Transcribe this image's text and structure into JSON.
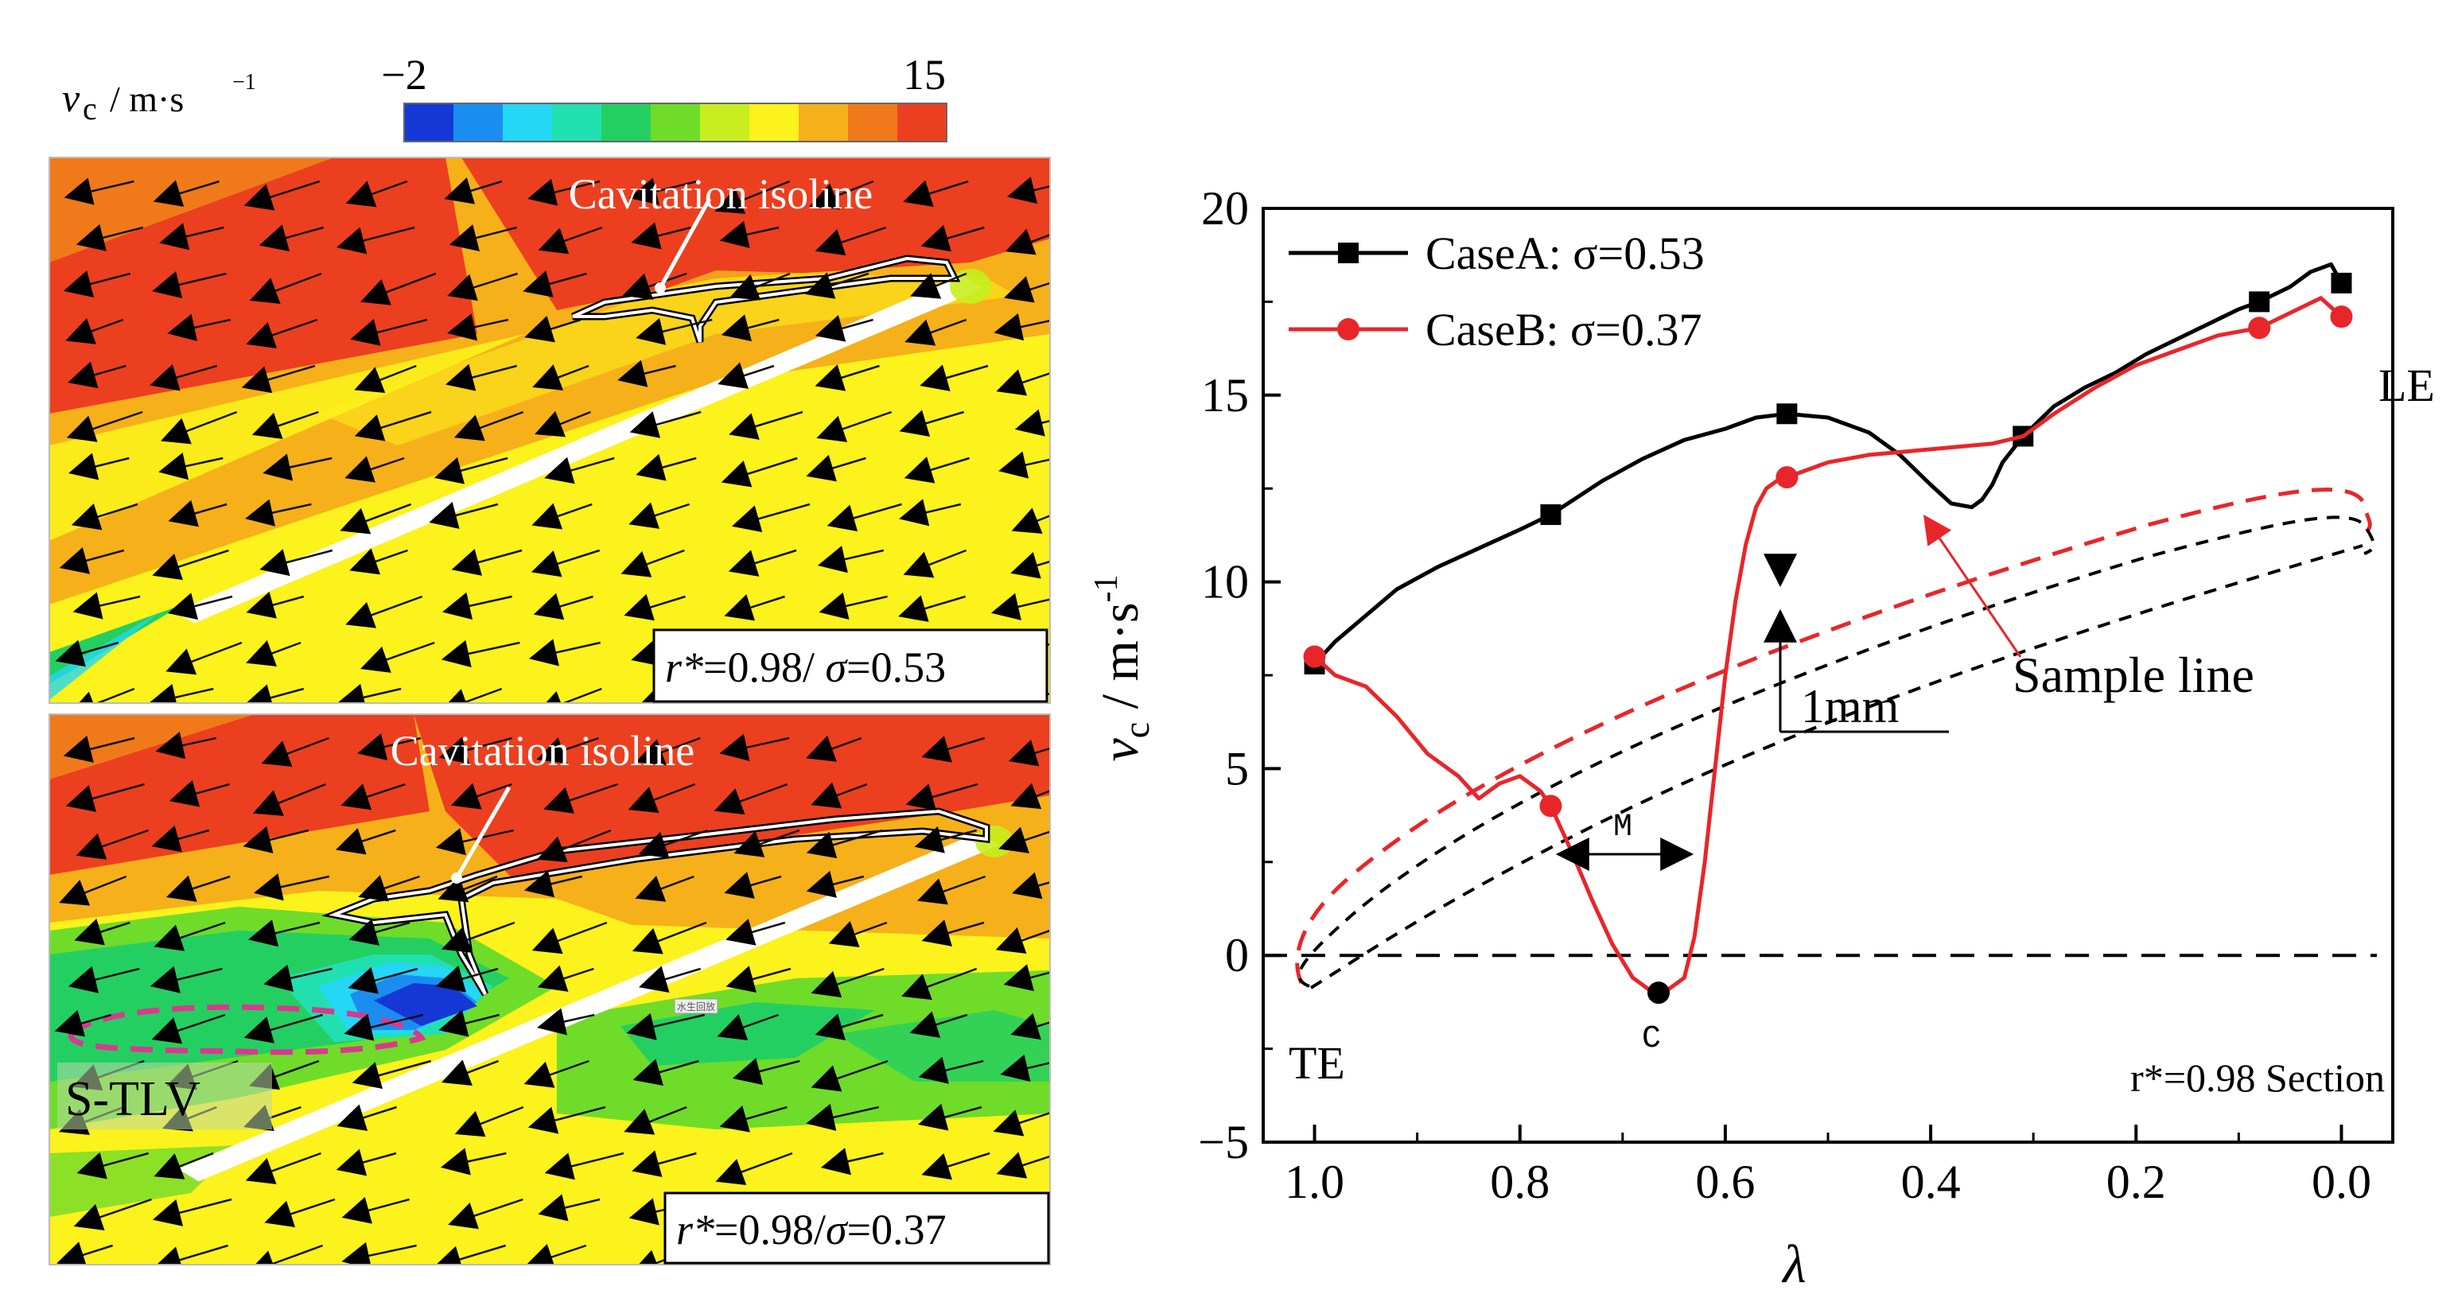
{
  "colorbar": {
    "symbol": "v",
    "subscript": "c",
    "unit": "/ m·s",
    "unit_exp": "−1",
    "min_label": "−2",
    "max_label": "15",
    "colors": [
      "#1538d6",
      "#1a8ef0",
      "#23d7f5",
      "#21e0b0",
      "#24cf62",
      "#6fdc2a",
      "#c8ee1e",
      "#fcf21c",
      "#f6b01a",
      "#f07a1a",
      "#ec3f1f"
    ]
  },
  "panels": [
    {
      "label": "r*=0.98/ σ=0.53",
      "label_r": "r*",
      "label_val": "=0.98/ ",
      "label_sigma": "σ",
      "label_sval": "=0.53",
      "annotation": "Cavitation isoline"
    },
    {
      "label": "r*=0.98/σ=0.37",
      "label_r": "r*",
      "label_val": "=0.98/",
      "label_sigma": "σ",
      "label_sval": "=0.37",
      "annotation": "Cavitation isoline",
      "vortex_label": "S-TLV",
      "stamp": "水生回放"
    }
  ],
  "chart_data": {
    "type": "line",
    "xlabel": "λ",
    "ylabel": "v",
    "ylabel_sub": "c",
    "ylabel_unit": " / m·s",
    "ylabel_exp": "-1",
    "xlim": [
      1.05,
      -0.05
    ],
    "ylim": [
      -5,
      20
    ],
    "xticks": [
      1.0,
      0.8,
      0.6,
      0.4,
      0.2,
      0.0
    ],
    "xtick_labels": [
      "1.0",
      "0.8",
      "0.6",
      "0.4",
      "0.2",
      "0.0"
    ],
    "yticks": [
      -5,
      0,
      5,
      10,
      15,
      20
    ],
    "ytick_labels": [
      "−5",
      "0",
      "5",
      "10",
      "15",
      "20"
    ],
    "legend_position": "top-left",
    "series": [
      {
        "name": "CaseA: σ=0.53",
        "color": "#000000",
        "marker": "square",
        "x": [
          1.0,
          0.98,
          0.95,
          0.92,
          0.88,
          0.84,
          0.8,
          0.77,
          0.72,
          0.68,
          0.64,
          0.6,
          0.57,
          0.54,
          0.5,
          0.46,
          0.43,
          0.4,
          0.38,
          0.36,
          0.35,
          0.34,
          0.33,
          0.31,
          0.28,
          0.25,
          0.22,
          0.19,
          0.16,
          0.13,
          0.1,
          0.08,
          0.05,
          0.03,
          0.01,
          0.0
        ],
        "y": [
          7.8,
          8.4,
          9.1,
          9.8,
          10.4,
          10.9,
          11.4,
          11.8,
          12.7,
          13.3,
          13.8,
          14.1,
          14.4,
          14.5,
          14.4,
          14.0,
          13.4,
          12.6,
          12.1,
          12.0,
          12.2,
          12.6,
          13.2,
          13.9,
          14.7,
          15.2,
          15.6,
          16.1,
          16.5,
          16.9,
          17.3,
          17.5,
          17.9,
          18.3,
          18.5,
          18.0
        ],
        "marker_x": [
          1.0,
          0.77,
          0.54,
          0.31,
          0.08,
          0.0
        ],
        "marker_y": [
          7.8,
          11.8,
          14.5,
          13.9,
          17.5,
          18.0
        ]
      },
      {
        "name": "CaseB: σ=0.37",
        "color": "#e8262a",
        "marker": "circle",
        "x": [
          1.0,
          0.98,
          0.95,
          0.92,
          0.89,
          0.86,
          0.84,
          0.82,
          0.8,
          0.78,
          0.77,
          0.75,
          0.73,
          0.71,
          0.69,
          0.67,
          0.66,
          0.64,
          0.63,
          0.62,
          0.61,
          0.6,
          0.59,
          0.58,
          0.57,
          0.56,
          0.55,
          0.54,
          0.5,
          0.46,
          0.42,
          0.38,
          0.34,
          0.31,
          0.28,
          0.24,
          0.2,
          0.16,
          0.12,
          0.08,
          0.05,
          0.02,
          0.0
        ],
        "y": [
          8.0,
          7.5,
          7.2,
          6.4,
          5.4,
          4.8,
          4.2,
          4.6,
          4.8,
          4.4,
          4.0,
          2.8,
          1.5,
          0.3,
          -0.6,
          -1.0,
          -1.0,
          -0.6,
          0.5,
          2.5,
          5.0,
          7.5,
          9.5,
          11.0,
          12.0,
          12.5,
          12.7,
          12.8,
          13.2,
          13.4,
          13.5,
          13.6,
          13.7,
          13.9,
          14.5,
          15.2,
          15.8,
          16.2,
          16.6,
          16.8,
          17.2,
          17.6,
          17.1
        ],
        "marker_x": [
          1.0,
          0.77,
          0.665,
          0.54,
          0.08,
          0.0
        ],
        "marker_y": [
          8.0,
          4.0,
          -1.0,
          12.8,
          16.8,
          17.1
        ]
      }
    ],
    "horizontal_line": {
      "y": 0,
      "style": "dashed"
    },
    "annotations": {
      "te": "TE",
      "le": "LE",
      "section": "r*=0.98 Section",
      "sample_line": "Sample line",
      "gap": "1mm",
      "m_label": "M",
      "c_label": "C"
    }
  }
}
